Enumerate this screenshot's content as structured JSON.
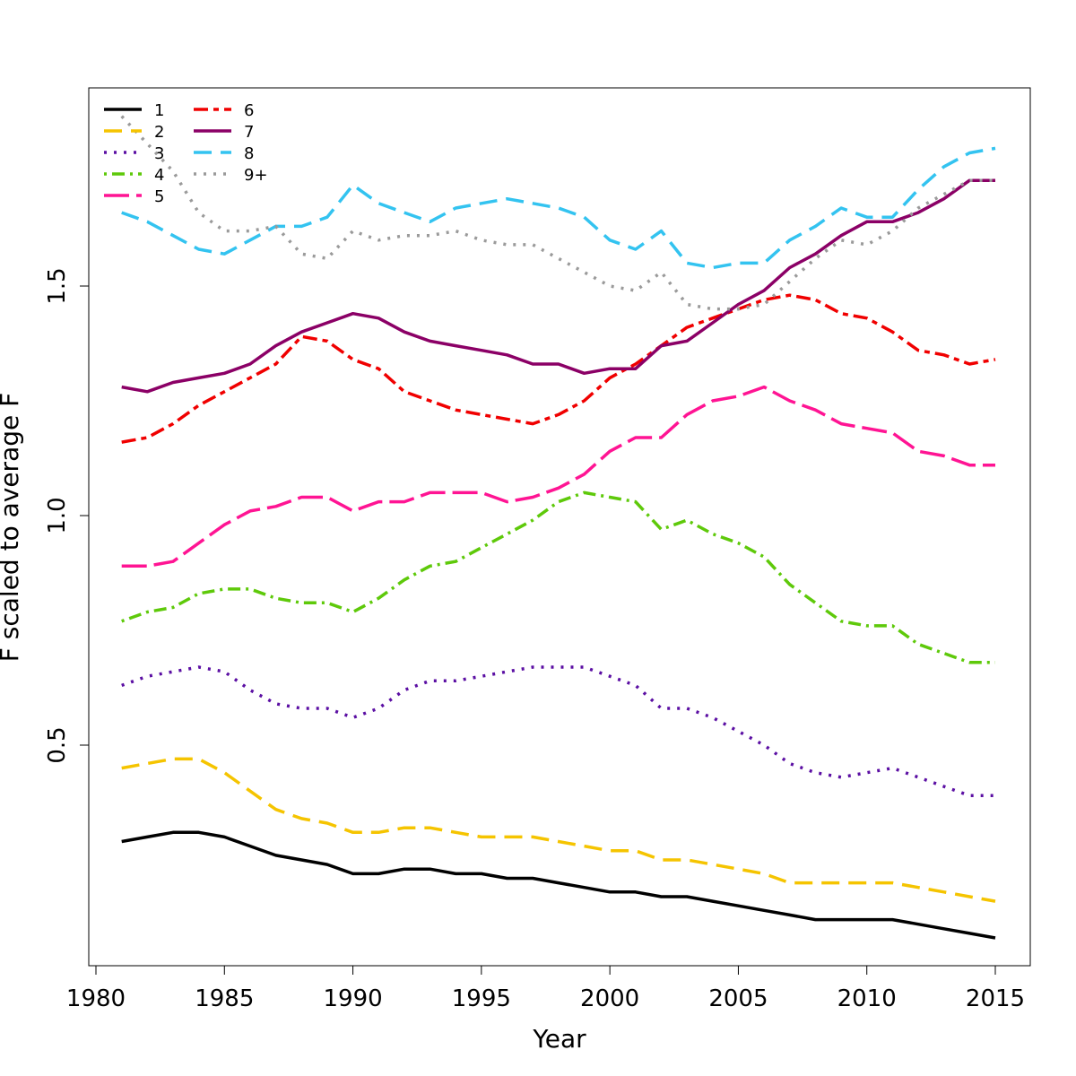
{
  "chart_data": {
    "type": "line",
    "title": "",
    "xlabel": "Year",
    "ylabel": "F scaled to average F",
    "xlim": [
      1980,
      2016
    ],
    "ylim": [
      0.0,
      1.91
    ],
    "x_ticks": [
      "1980",
      "1985",
      "1990",
      "1995",
      "2000",
      "2005",
      "2010",
      "2015"
    ],
    "y_ticks": [
      "0.5",
      "1.0",
      "1.5"
    ],
    "grid": false,
    "legend_position": "top-left",
    "x": [
      1981,
      1982,
      1983,
      1984,
      1985,
      1986,
      1987,
      1988,
      1989,
      1990,
      1991,
      1992,
      1993,
      1994,
      1995,
      1996,
      1997,
      1998,
      1999,
      2000,
      2001,
      2002,
      2003,
      2004,
      2005,
      2006,
      2007,
      2008,
      2009,
      2010,
      2011,
      2012,
      2013,
      2014,
      2015
    ],
    "series": [
      {
        "name": "1",
        "color": "#000000",
        "dash": "solid",
        "values": [
          0.29,
          0.3,
          0.31,
          0.31,
          0.3,
          0.28,
          0.26,
          0.25,
          0.24,
          0.22,
          0.22,
          0.23,
          0.23,
          0.22,
          0.22,
          0.21,
          0.21,
          0.2,
          0.19,
          0.18,
          0.18,
          0.17,
          0.17,
          0.16,
          0.15,
          0.14,
          0.13,
          0.12,
          0.12,
          0.12,
          0.12,
          0.11,
          0.1,
          0.09,
          0.08
        ]
      },
      {
        "name": "2",
        "color": "#f5c400",
        "dash": "dashed",
        "values": [
          0.45,
          0.46,
          0.47,
          0.47,
          0.44,
          0.4,
          0.36,
          0.34,
          0.33,
          0.31,
          0.31,
          0.32,
          0.32,
          0.31,
          0.3,
          0.3,
          0.3,
          0.29,
          0.28,
          0.27,
          0.27,
          0.25,
          0.25,
          0.24,
          0.23,
          0.22,
          0.2,
          0.2,
          0.2,
          0.2,
          0.2,
          0.19,
          0.18,
          0.17,
          0.16
        ]
      },
      {
        "name": "3",
        "color": "#5b0fa3",
        "dash": "dotted",
        "values": [
          0.63,
          0.65,
          0.66,
          0.67,
          0.66,
          0.62,
          0.59,
          0.58,
          0.58,
          0.56,
          0.58,
          0.62,
          0.64,
          0.64,
          0.65,
          0.66,
          0.67,
          0.67,
          0.67,
          0.65,
          0.63,
          0.58,
          0.58,
          0.56,
          0.53,
          0.5,
          0.46,
          0.44,
          0.43,
          0.44,
          0.45,
          0.43,
          0.41,
          0.39,
          0.39
        ]
      },
      {
        "name": "4",
        "color": "#5ec90a",
        "dash": "dotdash",
        "values": [
          0.77,
          0.79,
          0.8,
          0.83,
          0.84,
          0.84,
          0.82,
          0.81,
          0.81,
          0.79,
          0.82,
          0.86,
          0.89,
          0.9,
          0.93,
          0.96,
          0.99,
          1.03,
          1.05,
          1.04,
          1.03,
          0.97,
          0.99,
          0.96,
          0.94,
          0.91,
          0.85,
          0.81,
          0.77,
          0.76,
          0.76,
          0.72,
          0.7,
          0.68,
          0.68
        ]
      },
      {
        "name": "5",
        "color": "#ff1493",
        "dash": "longdash",
        "values": [
          0.89,
          0.89,
          0.9,
          0.94,
          0.98,
          1.01,
          1.02,
          1.04,
          1.04,
          1.01,
          1.03,
          1.03,
          1.05,
          1.05,
          1.05,
          1.03,
          1.04,
          1.06,
          1.09,
          1.14,
          1.17,
          1.17,
          1.22,
          1.25,
          1.26,
          1.28,
          1.25,
          1.23,
          1.2,
          1.19,
          1.18,
          1.14,
          1.13,
          1.11,
          1.11
        ]
      },
      {
        "name": "6",
        "color": "#f00000",
        "dash": "twodash",
        "values": [
          1.16,
          1.17,
          1.2,
          1.24,
          1.27,
          1.3,
          1.33,
          1.39,
          1.38,
          1.34,
          1.32,
          1.27,
          1.25,
          1.23,
          1.22,
          1.21,
          1.2,
          1.22,
          1.25,
          1.3,
          1.33,
          1.37,
          1.41,
          1.43,
          1.45,
          1.47,
          1.48,
          1.47,
          1.44,
          1.43,
          1.4,
          1.36,
          1.35,
          1.33,
          1.34
        ]
      },
      {
        "name": "7",
        "color": "#8b0066",
        "dash": "solid",
        "values": [
          1.28,
          1.27,
          1.29,
          1.3,
          1.31,
          1.33,
          1.37,
          1.4,
          1.42,
          1.44,
          1.43,
          1.4,
          1.38,
          1.37,
          1.36,
          1.35,
          1.33,
          1.33,
          1.31,
          1.32,
          1.32,
          1.37,
          1.38,
          1.42,
          1.46,
          1.49,
          1.54,
          1.57,
          1.61,
          1.64,
          1.64,
          1.66,
          1.69,
          1.73,
          1.73
        ]
      },
      {
        "name": "8",
        "color": "#33c3f0",
        "dash": "dashed",
        "values": [
          1.66,
          1.64,
          1.61,
          1.58,
          1.57,
          1.6,
          1.63,
          1.63,
          1.65,
          1.72,
          1.68,
          1.66,
          1.64,
          1.67,
          1.68,
          1.69,
          1.68,
          1.67,
          1.65,
          1.6,
          1.58,
          1.62,
          1.55,
          1.54,
          1.55,
          1.55,
          1.6,
          1.63,
          1.67,
          1.65,
          1.65,
          1.71,
          1.76,
          1.79,
          1.8
        ]
      },
      {
        "name": "9+",
        "color": "#9a9a9a",
        "dash": "dotted",
        "values": [
          1.87,
          1.81,
          1.75,
          1.66,
          1.62,
          1.62,
          1.63,
          1.57,
          1.56,
          1.62,
          1.6,
          1.61,
          1.61,
          1.62,
          1.6,
          1.59,
          1.59,
          1.56,
          1.53,
          1.5,
          1.49,
          1.53,
          1.46,
          1.45,
          1.45,
          1.46,
          1.51,
          1.56,
          1.6,
          1.59,
          1.62,
          1.67,
          1.7,
          1.73,
          1.73
        ]
      }
    ]
  }
}
